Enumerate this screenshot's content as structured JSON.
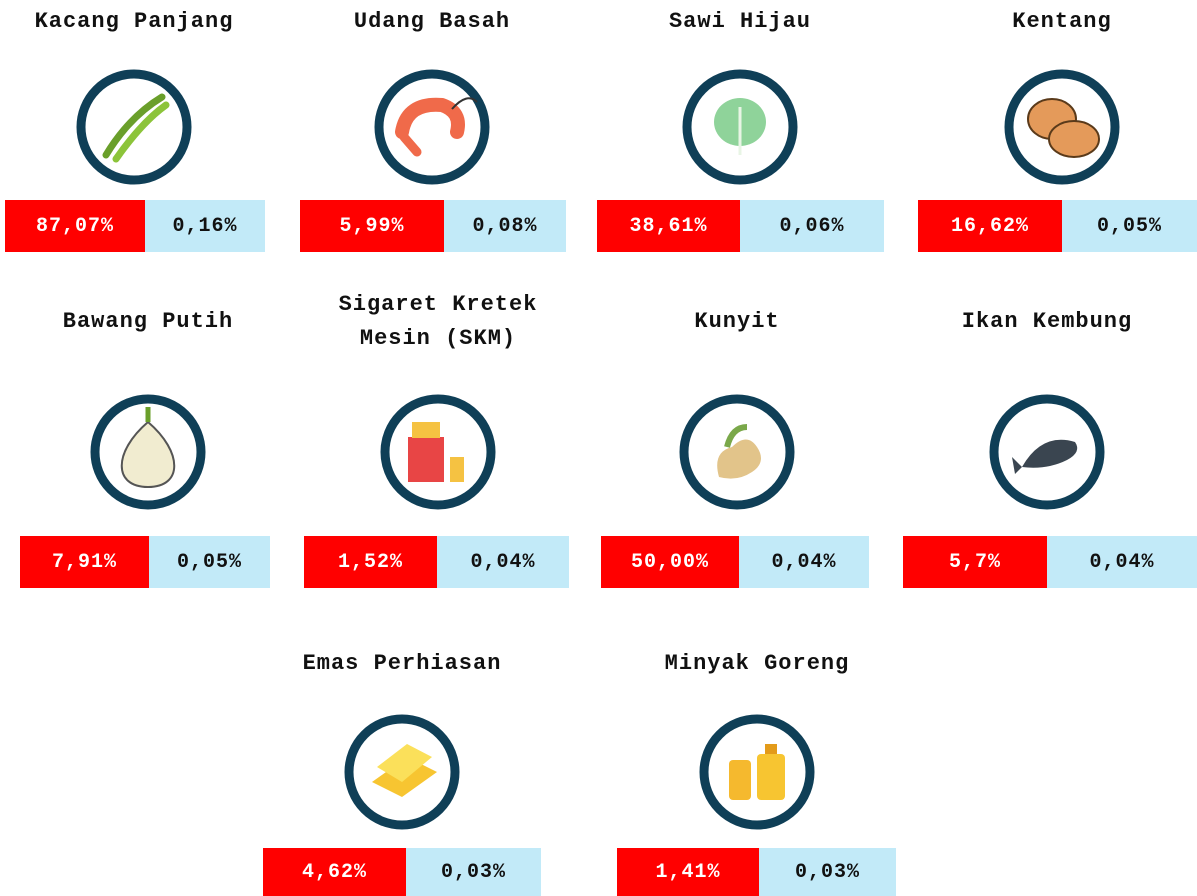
{
  "items": [
    {
      "name": "Kacang Panjang",
      "change": "87,07%",
      "share": "0,16%"
    },
    {
      "name": "Udang Basah",
      "change": "5,99%",
      "share": "0,08%"
    },
    {
      "name": "Sawi Hijau",
      "change": "38,61%",
      "share": "0,06%"
    },
    {
      "name": "Kentang",
      "change": "16,62%",
      "share": "0,05%"
    },
    {
      "name": "Bawang Putih",
      "change": "7,91%",
      "share": "0,05%"
    },
    {
      "name": "Sigaret Kretek Mesin (SKM)",
      "change": "1,52%",
      "share": "0,04%"
    },
    {
      "name": "Kunyit",
      "change": "50,00%",
      "share": "0,04%"
    },
    {
      "name": "Ikan Kembung",
      "change": "5,7%",
      "share": "0,04%"
    },
    {
      "name": "Emas Perhiasan",
      "change": "4,62%",
      "share": "0,03%"
    },
    {
      "name": "Minyak Goreng",
      "change": "1,41%",
      "share": "0,03%"
    }
  ]
}
